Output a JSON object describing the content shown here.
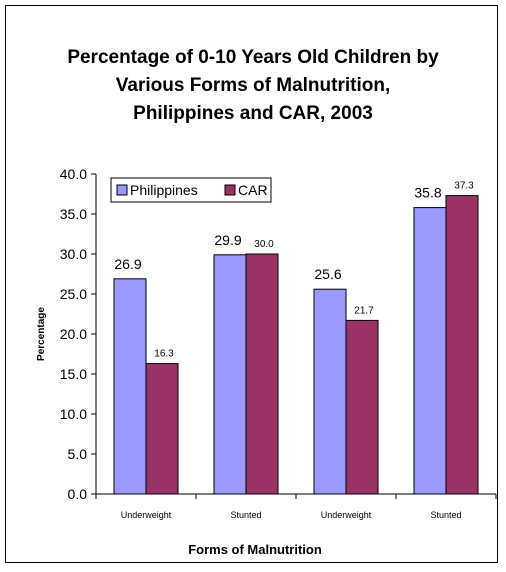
{
  "chart_data": {
    "type": "bar",
    "title_lines": [
      "Percentage of 0-10 Years Old Children by",
      "Various Forms of Malnutrition,",
      "Philippines and CAR, 2003"
    ],
    "xlabel": "Forms of Malnutrition",
    "ylabel": "Percentage",
    "ylim": [
      0,
      40
    ],
    "yticks": [
      "0.0",
      "5.0",
      "10.0",
      "15.0",
      "20.0",
      "25.0",
      "30.0",
      "35.0",
      "40.0"
    ],
    "categories": [
      "Underweight",
      "Stunted",
      "Underweight",
      "Stunted"
    ],
    "series": [
      {
        "name": "Philippines",
        "color": "#9999ff",
        "values": [
          26.9,
          29.9,
          25.6,
          35.8
        ],
        "labels": [
          "26.9",
          "29.9",
          "25.6",
          "35.8"
        ]
      },
      {
        "name": "CAR",
        "color": "#993366",
        "values": [
          16.3,
          30.0,
          21.7,
          37.3
        ],
        "labels": [
          "16.3",
          "30.0",
          "21.7",
          "37.3"
        ]
      }
    ],
    "legend_position": "top-left",
    "grid": false
  }
}
